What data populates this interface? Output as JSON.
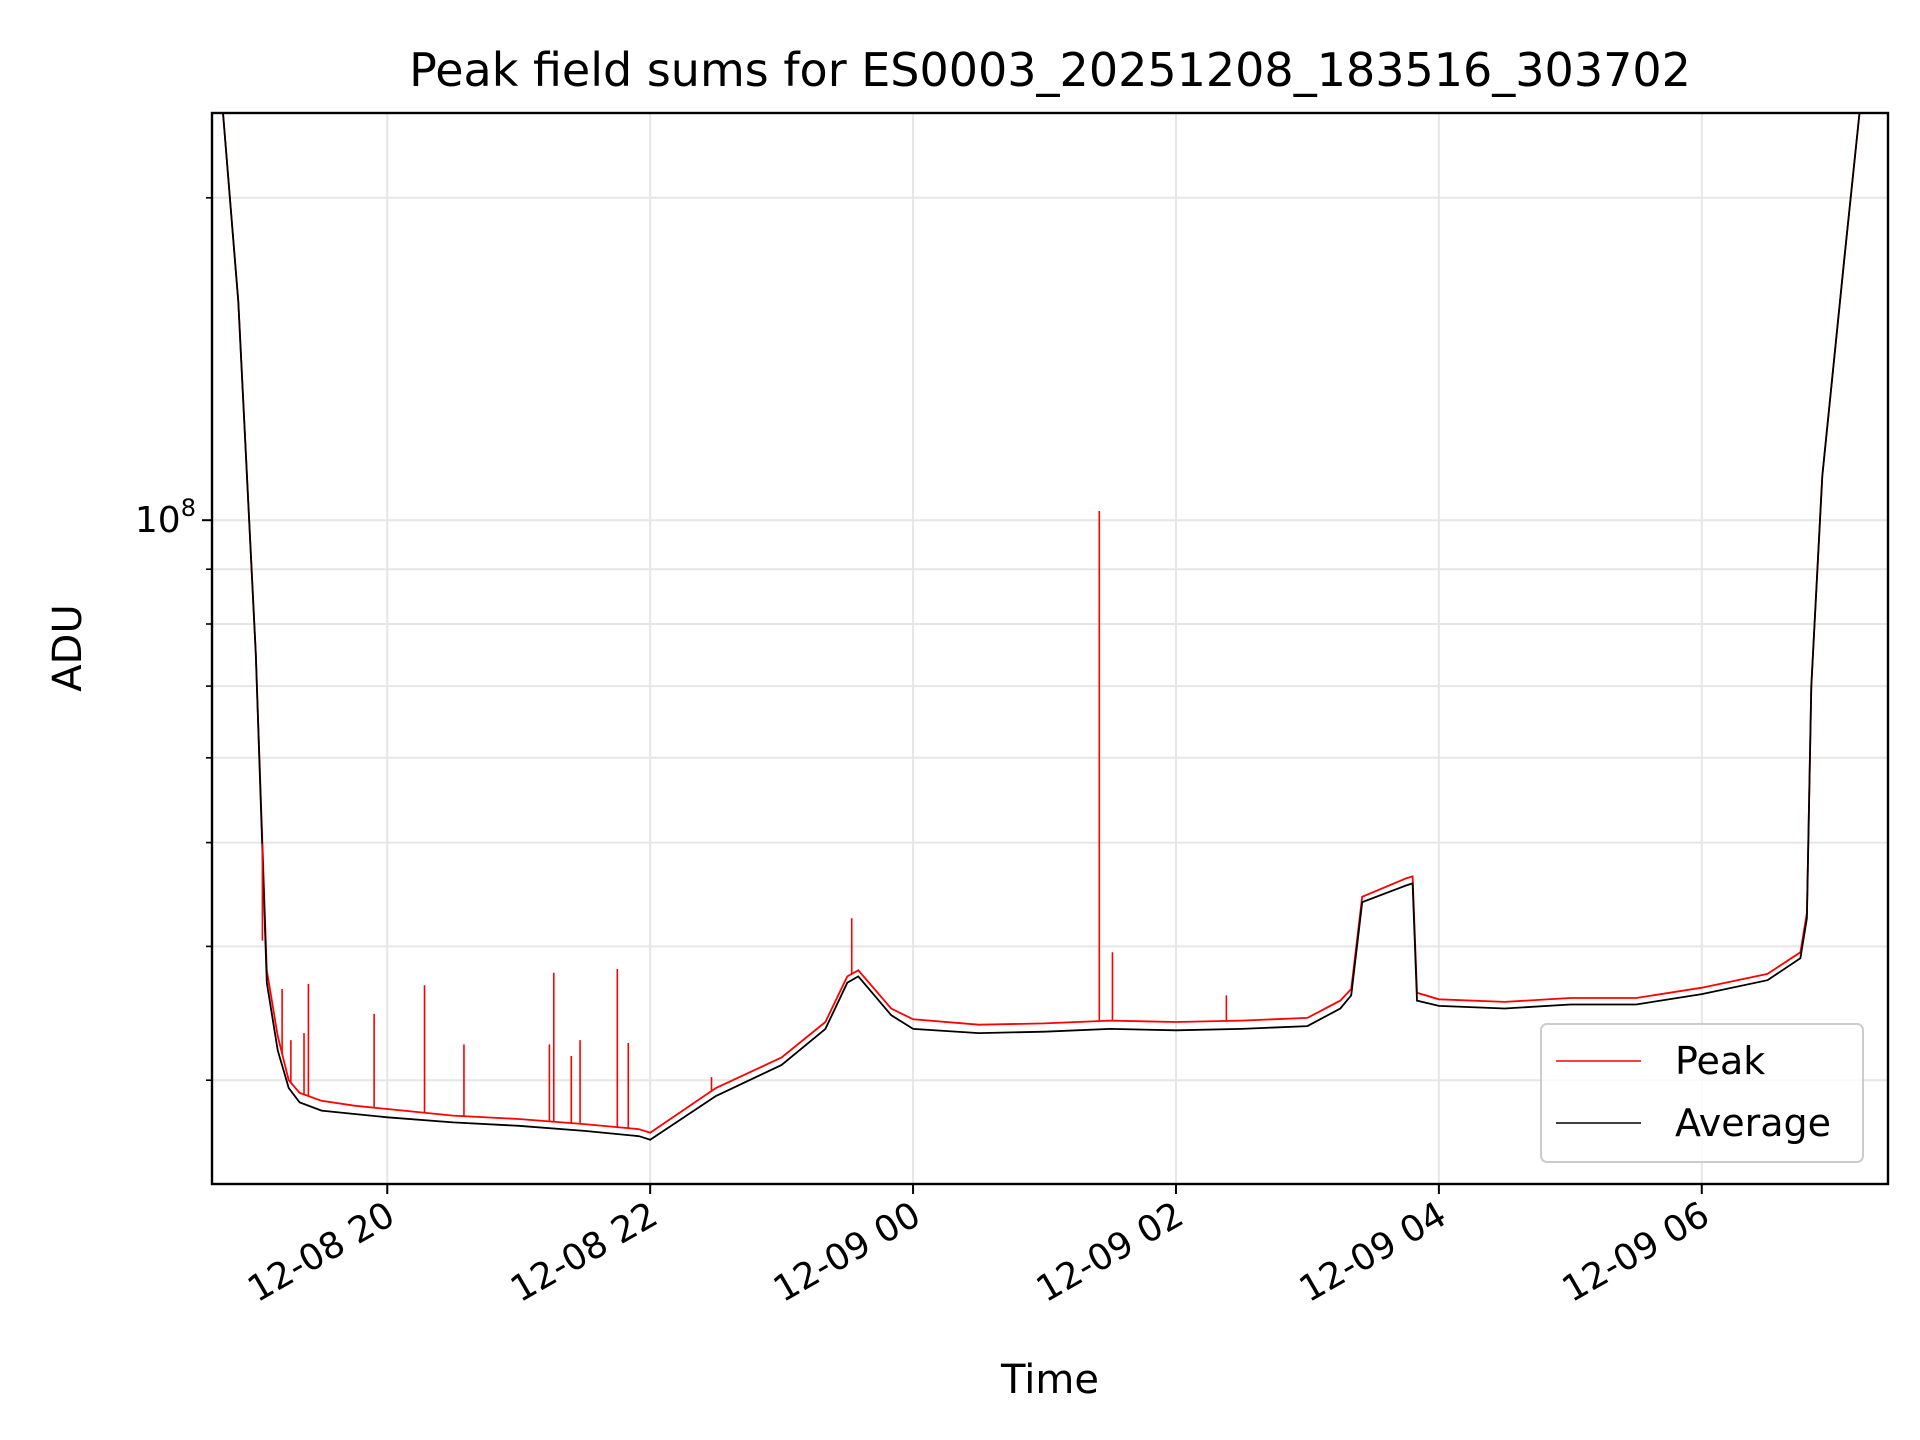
{
  "chart_data": {
    "type": "line",
    "title": "Peak field sums for ES0003_20251208_183516_303702",
    "xlabel": "Time",
    "ylabel": "ADU",
    "y_scale": "log",
    "grid": true,
    "legend_placement": "lower right",
    "xlim": [
      "2025-12-08 18:40",
      "2025-12-09 07:25"
    ],
    "ylim": [
      24000000,
      240000000
    ],
    "x_ticks": [
      "12-08 20",
      "12-08 22",
      "12-09 00",
      "12-09 02",
      "12-09 04",
      "12-09 06"
    ],
    "x_tick_times": [
      "2025-12-08 20:00",
      "2025-12-08 22:00",
      "2025-12-09 00:00",
      "2025-12-09 02:00",
      "2025-12-09 04:00",
      "2025-12-09 06:00"
    ],
    "y_major_tick": {
      "value": 100000000,
      "label_base": "10",
      "label_exp": "8"
    },
    "y_minor_ticks": [
      30000000,
      40000000,
      50000000,
      60000000,
      70000000,
      80000000,
      90000000,
      200000000
    ],
    "series": [
      {
        "name": "Peak",
        "color": "#ff0000",
        "x": [
          "2025-12-08 18:40",
          "2025-12-08 18:45",
          "2025-12-08 18:52",
          "2025-12-08 19:00",
          "2025-12-08 19:05",
          "2025-12-08 19:10",
          "2025-12-08 19:15",
          "2025-12-08 19:20",
          "2025-12-08 19:30",
          "2025-12-08 19:45",
          "2025-12-08 20:00",
          "2025-12-08 20:30",
          "2025-12-08 21:00",
          "2025-12-08 21:30",
          "2025-12-08 21:55",
          "2025-12-08 22:00",
          "2025-12-08 22:30",
          "2025-12-08 23:00",
          "2025-12-08 23:20",
          "2025-12-08 23:30",
          "2025-12-08 23:35",
          "2025-12-08 23:50",
          "2025-12-09 00:00",
          "2025-12-09 00:30",
          "2025-12-09 01:00",
          "2025-12-09 01:30",
          "2025-12-09 02:00",
          "2025-12-09 02:30",
          "2025-12-09 03:00",
          "2025-12-09 03:15",
          "2025-12-09 03:20",
          "2025-12-09 03:25",
          "2025-12-09 03:45",
          "2025-12-09 03:48",
          "2025-12-09 03:50",
          "2025-12-09 04:00",
          "2025-12-09 04:30",
          "2025-12-09 05:00",
          "2025-12-09 05:30",
          "2025-12-09 06:00",
          "2025-12-09 06:30",
          "2025-12-09 06:45",
          "2025-12-09 06:48",
          "2025-12-09 06:50",
          "2025-12-09 06:55",
          "2025-12-09 07:05",
          "2025-12-09 07:12"
        ],
        "y": [
          240000000,
          240000000,
          160000000,
          75000000,
          38000000,
          33000000,
          30000000,
          29200000,
          28700000,
          28400000,
          28200000,
          27800000,
          27600000,
          27300000,
          27000000,
          26800000,
          29500000,
          31500000,
          34000000,
          37500000,
          38000000,
          35000000,
          34200000,
          33800000,
          33900000,
          34100000,
          34000000,
          34100000,
          34300000,
          35600000,
          36500000,
          44500000,
          46300000,
          46500000,
          36200000,
          35700000,
          35500000,
          35800000,
          35800000,
          36600000,
          37700000,
          39500000,
          43000000,
          70000000,
          110000000,
          175000000,
          240000000
        ]
      },
      {
        "name": "Average",
        "color": "#000000",
        "x": [
          "2025-12-08 18:40",
          "2025-12-08 18:45",
          "2025-12-08 18:52",
          "2025-12-08 19:00",
          "2025-12-08 19:05",
          "2025-12-08 19:10",
          "2025-12-08 19:15",
          "2025-12-08 19:20",
          "2025-12-08 19:30",
          "2025-12-08 19:45",
          "2025-12-08 20:00",
          "2025-12-08 20:30",
          "2025-12-08 21:00",
          "2025-12-08 21:30",
          "2025-12-08 21:55",
          "2025-12-08 22:00",
          "2025-12-08 22:30",
          "2025-12-08 23:00",
          "2025-12-08 23:20",
          "2025-12-08 23:30",
          "2025-12-08 23:35",
          "2025-12-08 23:50",
          "2025-12-09 00:00",
          "2025-12-09 00:30",
          "2025-12-09 01:00",
          "2025-12-09 01:30",
          "2025-12-09 02:00",
          "2025-12-09 02:30",
          "2025-12-09 03:00",
          "2025-12-09 03:15",
          "2025-12-09 03:20",
          "2025-12-09 03:25",
          "2025-12-09 03:45",
          "2025-12-09 03:48",
          "2025-12-09 03:50",
          "2025-12-09 04:00",
          "2025-12-09 04:30",
          "2025-12-09 05:00",
          "2025-12-09 05:30",
          "2025-12-09 06:00",
          "2025-12-09 06:30",
          "2025-12-09 06:45",
          "2025-12-09 06:48",
          "2025-12-09 06:50",
          "2025-12-09 06:55",
          "2025-12-09 07:05",
          "2025-12-09 07:12"
        ],
        "y": [
          240000000,
          240000000,
          160000000,
          75000000,
          37000000,
          32000000,
          29500000,
          28600000,
          28100000,
          27900000,
          27700000,
          27400000,
          27200000,
          26900000,
          26600000,
          26400000,
          29000000,
          31000000,
          33500000,
          37000000,
          37500000,
          34500000,
          33500000,
          33200000,
          33300000,
          33500000,
          33400000,
          33500000,
          33700000,
          35000000,
          36000000,
          44000000,
          45600000,
          45800000,
          35600000,
          35200000,
          35000000,
          35300000,
          35300000,
          36100000,
          37200000,
          39000000,
          42500000,
          70000000,
          110000000,
          175000000,
          240000000
        ]
      }
    ],
    "spikes": [
      {
        "series": "Peak",
        "x": "2025-12-08 19:03",
        "y": 40500000
      },
      {
        "series": "Peak",
        "x": "2025-12-08 19:06",
        "y": 36800000
      },
      {
        "series": "Peak",
        "x": "2025-12-08 19:12",
        "y": 36500000
      },
      {
        "series": "Peak",
        "x": "2025-12-08 19:16",
        "y": 32700000
      },
      {
        "series": "Peak",
        "x": "2025-12-08 19:22",
        "y": 33200000
      },
      {
        "series": "Peak",
        "x": "2025-12-08 19:24",
        "y": 36900000
      },
      {
        "series": "Peak",
        "x": "2025-12-08 19:54",
        "y": 34600000
      },
      {
        "series": "Peak",
        "x": "2025-12-08 20:17",
        "y": 36800000
      },
      {
        "series": "Peak",
        "x": "2025-12-08 20:35",
        "y": 32400000
      },
      {
        "series": "Peak",
        "x": "2025-12-08 21:14",
        "y": 32400000
      },
      {
        "series": "Peak",
        "x": "2025-12-08 21:16",
        "y": 37800000
      },
      {
        "series": "Peak",
        "x": "2025-12-08 21:24",
        "y": 31600000
      },
      {
        "series": "Peak",
        "x": "2025-12-08 21:28",
        "y": 32700000
      },
      {
        "series": "Peak",
        "x": "2025-12-08 21:45",
        "y": 38100000
      },
      {
        "series": "Peak",
        "x": "2025-12-08 21:50",
        "y": 32500000
      },
      {
        "series": "Peak",
        "x": "2025-12-08 22:28",
        "y": 30200000
      },
      {
        "series": "Peak",
        "x": "2025-12-08 23:32",
        "y": 42500000
      },
      {
        "series": "Peak",
        "x": "2025-12-09 01:25",
        "y": 102000000
      },
      {
        "series": "Peak",
        "x": "2025-12-09 01:31",
        "y": 39500000
      },
      {
        "series": "Peak",
        "x": "2025-12-09 02:23",
        "y": 36000000
      }
    ]
  }
}
